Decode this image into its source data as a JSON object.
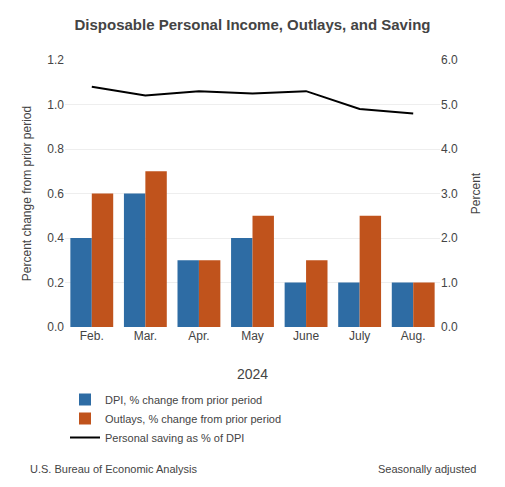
{
  "chart_data": {
    "type": "bar",
    "title": "Disposable Personal Income, Outlays, and Saving",
    "categories": [
      "Feb.",
      "Mar.",
      "Apr.",
      "May",
      "June",
      "July",
      "Aug."
    ],
    "xlabel": "2024",
    "ylabel": "Percent change from prior period",
    "y2label": "Percent",
    "series": [
      {
        "name": "DPI, % change from prior period",
        "color": "#2E6CA4",
        "type": "bar",
        "values": [
          0.4,
          0.6,
          0.3,
          0.4,
          0.2,
          0.2,
          0.2
        ]
      },
      {
        "name": "Outlays, % change from prior period",
        "color": "#C0531C",
        "type": "bar",
        "values": [
          0.6,
          0.7,
          0.3,
          0.5,
          0.3,
          0.5,
          0.2
        ]
      },
      {
        "name": "Personal saving as % of DPI",
        "color": "#000000",
        "type": "line",
        "axis": "y2",
        "values": [
          5.4,
          5.2,
          5.3,
          5.25,
          5.3,
          4.9,
          4.8
        ]
      }
    ],
    "ylim": [
      0.0,
      1.2
    ],
    "yticks": [
      {
        "value": 0,
        "label": "0.0"
      },
      0.2,
      0.4,
      0.6,
      0.8,
      {
        "value": 1,
        "label": "1.0"
      },
      1.2
    ],
    "y2lim": [
      0.0,
      6.0
    ],
    "y2ticks": [
      {
        "value": 0,
        "label": "0.0"
      },
      {
        "value": 1,
        "label": "1.0"
      },
      {
        "value": 2,
        "label": "2.0"
      },
      {
        "value": 3,
        "label": "3.0"
      },
      {
        "value": 4,
        "label": "4.0"
      },
      {
        "value": 5,
        "label": "5.0"
      },
      {
        "value": 6,
        "label": "6.0"
      }
    ],
    "grid": true,
    "legend": "bottom",
    "annotations": [
      "U.S. Bureau of Economic Analysis",
      "Seasonally adjusted"
    ]
  }
}
